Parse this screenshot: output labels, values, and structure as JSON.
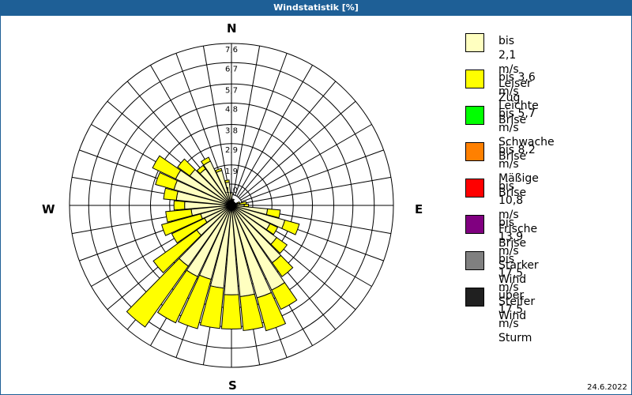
{
  "title": "Windstatistik [%]",
  "date": "24.6.2022",
  "compass": {
    "n": "N",
    "e": "E",
    "s": "S",
    "w": "W"
  },
  "legend": [
    {
      "line1": "bis 2,1 m/s",
      "line2": "Leiser Zug",
      "color": "#ffffc0"
    },
    {
      "line1": "bis 3,6 m/s",
      "line2": "Leichte Brise",
      "color": "#ffff00"
    },
    {
      "line1": "bis 5,7 m/s",
      "line2": "Schwache Brise",
      "color": "#00ff00"
    },
    {
      "line1": "bis 8,2 m/s",
      "line2": "Mäßige Brise",
      "color": "#ff8000"
    },
    {
      "line1": "bis 10,8 m/s",
      "line2": "Frische Brise",
      "color": "#ff0000"
    },
    {
      "line1": "bis 13,9 m/s",
      "line2": "Starker Wind",
      "color": "#800080"
    },
    {
      "line1": "bis 17,5 m/s",
      "line2": "Steifer Wind",
      "color": "#808080"
    },
    {
      "line1": "über 17,5 m/s",
      "line2": "Sturm",
      "color": "#202020"
    }
  ],
  "chart_data": {
    "type": "wind-rose",
    "title": "Windstatistik [%]",
    "ring_labels": [
      "1,0",
      "1,9",
      "2,9",
      "3,8",
      "4,8",
      "5,7",
      "6,7",
      "7,6"
    ],
    "rmax": 7.6,
    "directions_deg": [
      0,
      10,
      20,
      30,
      40,
      50,
      60,
      70,
      80,
      90,
      100,
      110,
      120,
      130,
      140,
      150,
      160,
      170,
      180,
      190,
      200,
      210,
      220,
      230,
      240,
      250,
      260,
      270,
      280,
      290,
      300,
      310,
      320,
      330,
      340,
      350
    ],
    "series": [
      {
        "name": "bis 2,1 m/s",
        "values": [
          0.6,
          0.3,
          0.3,
          0.2,
          0.2,
          0.2,
          0.2,
          0.3,
          0.4,
          0.6,
          1.7,
          2.6,
          2.0,
          2.6,
          3.3,
          4.4,
          4.5,
          4.3,
          4.2,
          3.9,
          3.6,
          3.7,
          3.5,
          2.0,
          1.4,
          1.5,
          1.9,
          2.2,
          2.6,
          2.8,
          2.9,
          2.4,
          2.1,
          2.3,
          1.7,
          1.1
        ]
      },
      {
        "name": "bis 3,6 m/s",
        "values": [
          0.0,
          0.0,
          0.0,
          0.0,
          0.0,
          0.0,
          0.0,
          0.1,
          0.3,
          0.2,
          0.6,
          0.7,
          0.4,
          0.6,
          0.8,
          1.0,
          1.6,
          1.6,
          1.6,
          1.9,
          2.4,
          2.4,
          3.5,
          2.5,
          1.7,
          1.9,
          1.2,
          0.5,
          0.6,
          0.9,
          1.2,
          0.7,
          0.2,
          0.2,
          0.1,
          0.1
        ]
      },
      {
        "name": "bis 5,7 m/s",
        "values": [
          0,
          0,
          0,
          0,
          0,
          0,
          0,
          0,
          0,
          0,
          0,
          0,
          0,
          0,
          0,
          0,
          0,
          0,
          0,
          0,
          0,
          0,
          0,
          0,
          0,
          0,
          0,
          0,
          0,
          0,
          0,
          0,
          0,
          0,
          0,
          0
        ]
      }
    ]
  }
}
